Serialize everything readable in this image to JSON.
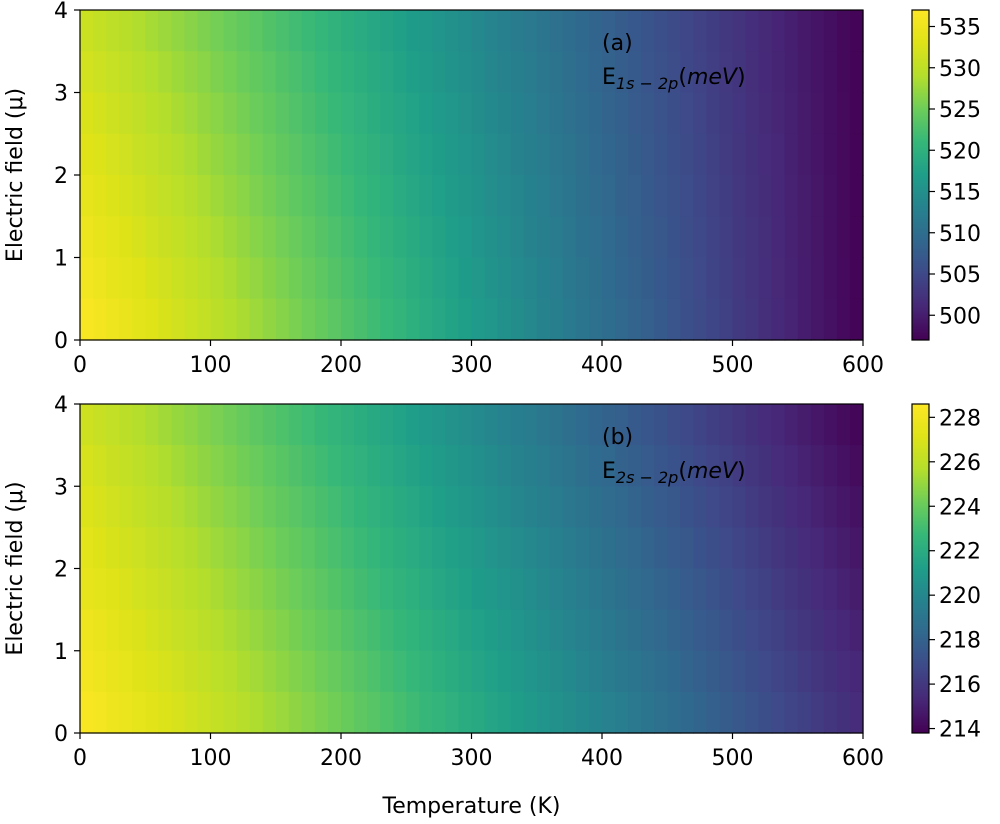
{
  "chart_data": [
    {
      "type": "heatmap",
      "panel_label": "(a)",
      "annotation": {
        "base": "E",
        "subscript": "1s − 2p",
        "unit": "meV"
      },
      "x": {
        "ticks": [
          0,
          100,
          200,
          300,
          400,
          500,
          600
        ],
        "range": [
          0,
          600
        ]
      },
      "y": {
        "label": "Electric field (μ)",
        "ticks": [
          0,
          1,
          2,
          3,
          4
        ],
        "range": [
          0,
          4
        ]
      },
      "colorbar": {
        "range": [
          497,
          537
        ],
        "ticks": [
          500,
          505,
          510,
          515,
          520,
          525,
          530,
          535
        ]
      },
      "colormap": "viridis",
      "z_model": {
        "corner_values": {
          "x0_y0": 537,
          "x600_y0": 497,
          "x0_y4": 531,
          "x600_y4": 497
        }
      }
    },
    {
      "type": "heatmap",
      "panel_label": "(b)",
      "annotation": {
        "base": "E",
        "subscript": "2s − 2p",
        "unit": "meV"
      },
      "x": {
        "label": "Temperature (K)",
        "ticks": [
          0,
          100,
          200,
          300,
          400,
          500,
          600
        ],
        "range": [
          0,
          600
        ]
      },
      "y": {
        "label": "Electric field (μ)",
        "ticks": [
          0,
          1,
          2,
          3,
          4
        ],
        "range": [
          0,
          4
        ]
      },
      "colorbar": {
        "range": [
          213.8,
          228.6
        ],
        "ticks": [
          214,
          216,
          218,
          220,
          222,
          224,
          226,
          228
        ]
      },
      "colormap": "viridis",
      "z_model": {
        "corner_values": {
          "x0_y0": 228.6,
          "x600_y0": 215.5,
          "x0_y4": 226.5,
          "x600_y4": 213.8
        }
      }
    }
  ]
}
